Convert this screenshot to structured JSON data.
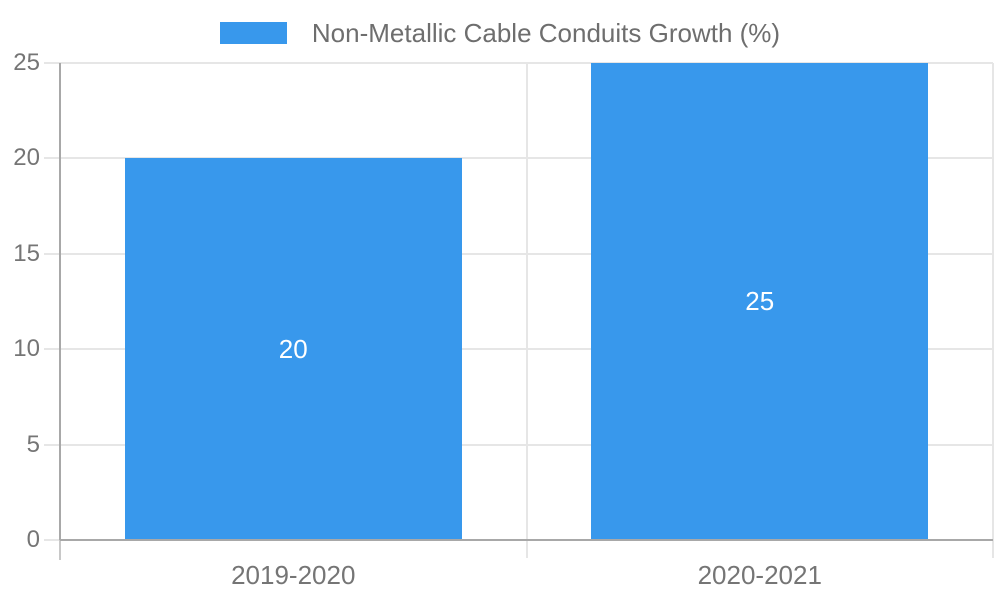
{
  "chart_data": {
    "type": "bar",
    "title": "",
    "categories": [
      "2019-2020",
      "2020-2021"
    ],
    "series": [
      {
        "name": "Non-Metallic Cable Conduits Growth (%)",
        "values": [
          20,
          25
        ]
      }
    ],
    "value_labels": [
      "20",
      "25"
    ],
    "xlabel": "",
    "ylabel": "",
    "ylim": [
      0,
      25
    ],
    "yticks": [
      0,
      5,
      10,
      15,
      20,
      25
    ],
    "grid": true,
    "legend_position": "top-center",
    "colors": {
      "bar": "#3898EC",
      "grid": "#e6e6e6",
      "axis": "#a8a8a8",
      "axis_extension": "#c8c8c8",
      "tick_text": "#757575",
      "legend_text": "#6e6e6e",
      "value_text": "#ffffff",
      "background": "#ffffff"
    }
  }
}
